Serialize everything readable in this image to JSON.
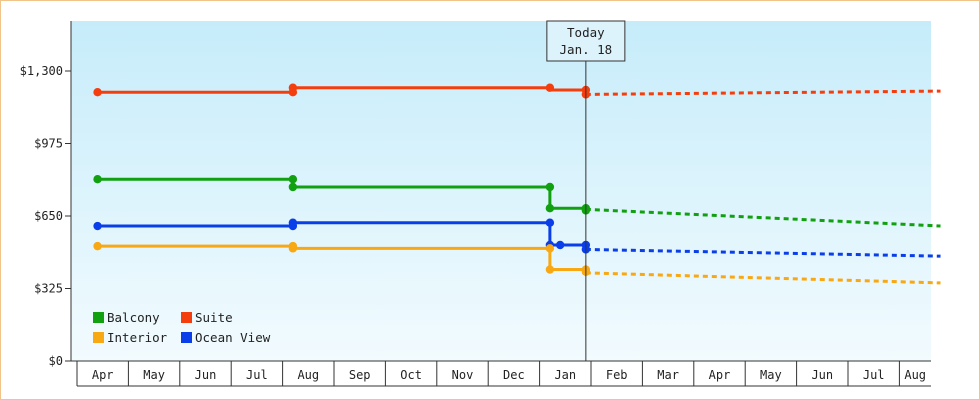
{
  "chart_data": {
    "type": "line",
    "title": "",
    "xlabel": "",
    "ylabel": "",
    "x_axis_months": [
      "Apr",
      "May",
      "Jun",
      "Jul",
      "Aug",
      "Sep",
      "Oct",
      "Nov",
      "Dec",
      "Jan",
      "Feb",
      "Mar",
      "Apr",
      "May",
      "Jun",
      "Jul",
      "Aug"
    ],
    "y_ticks": [
      "$0",
      "$325",
      "$650",
      "$975",
      "$1,300"
    ],
    "ylim": [
      0,
      1300
    ],
    "today_marker": {
      "line1": "Today",
      "line2": "Jan. 18",
      "x": 9.4
    },
    "grid": false,
    "legend_position": "bottom-left",
    "colors": {
      "balcony": "#10a010",
      "suite": "#f53e0e",
      "interior": "#f8a812",
      "ocean_view": "#0a3ee8"
    },
    "series": [
      {
        "name": "Suite",
        "color": "#f53e0e",
        "points": [
          [
            -0.1,
            1205
          ],
          [
            3.7,
            1205
          ],
          [
            3.7,
            1225
          ],
          [
            8.7,
            1225
          ],
          [
            8.7,
            1215
          ],
          [
            9.4,
            1215
          ],
          [
            9.4,
            1195
          ]
        ],
        "markers": [
          [
            -0.1,
            1205
          ],
          [
            3.7,
            1205
          ],
          [
            3.7,
            1225
          ],
          [
            8.7,
            1225
          ],
          [
            9.4,
            1215
          ],
          [
            9.4,
            1195
          ]
        ],
        "forecast": [
          [
            9.4,
            1195
          ],
          [
            16.3,
            1210
          ]
        ]
      },
      {
        "name": "Balcony",
        "color": "#10a010",
        "points": [
          [
            -0.1,
            815
          ],
          [
            3.7,
            815
          ],
          [
            3.7,
            780
          ],
          [
            8.7,
            780
          ],
          [
            8.7,
            685
          ],
          [
            9.4,
            685
          ]
        ],
        "markers": [
          [
            -0.1,
            815
          ],
          [
            3.7,
            815
          ],
          [
            3.7,
            780
          ],
          [
            8.7,
            780
          ],
          [
            8.7,
            685
          ],
          [
            9.4,
            685
          ],
          [
            9.4,
            675
          ]
        ],
        "forecast": [
          [
            9.4,
            680
          ],
          [
            16.3,
            605
          ]
        ]
      },
      {
        "name": "Ocean View",
        "color": "#0a3ee8",
        "points": [
          [
            -0.1,
            605
          ],
          [
            3.7,
            605
          ],
          [
            3.7,
            620
          ],
          [
            8.7,
            620
          ],
          [
            8.7,
            520
          ],
          [
            9.4,
            520
          ],
          [
            9.4,
            500
          ]
        ],
        "markers": [
          [
            -0.1,
            605
          ],
          [
            3.7,
            605
          ],
          [
            3.7,
            620
          ],
          [
            8.7,
            620
          ],
          [
            8.7,
            520
          ],
          [
            8.9,
            520
          ],
          [
            9.4,
            520
          ],
          [
            9.4,
            500
          ]
        ],
        "forecast": [
          [
            9.4,
            500
          ],
          [
            16.3,
            470
          ]
        ]
      },
      {
        "name": "Interior",
        "color": "#f8a812",
        "points": [
          [
            -0.1,
            515
          ],
          [
            3.7,
            515
          ],
          [
            3.7,
            505
          ],
          [
            8.7,
            505
          ],
          [
            8.7,
            410
          ],
          [
            9.4,
            410
          ]
        ],
        "markers": [
          [
            -0.1,
            515
          ],
          [
            3.7,
            515
          ],
          [
            3.7,
            505
          ],
          [
            8.7,
            505
          ],
          [
            8.7,
            410
          ],
          [
            9.4,
            410
          ],
          [
            9.4,
            400
          ]
        ],
        "forecast": [
          [
            9.4,
            395
          ],
          [
            16.3,
            350
          ]
        ]
      }
    ],
    "legend": [
      {
        "name": "Balcony",
        "color": "#10a010"
      },
      {
        "name": "Suite",
        "color": "#f53e0e"
      },
      {
        "name": "Interior",
        "color": "#f8a812"
      },
      {
        "name": "Ocean View",
        "color": "#0a3ee8"
      }
    ]
  }
}
